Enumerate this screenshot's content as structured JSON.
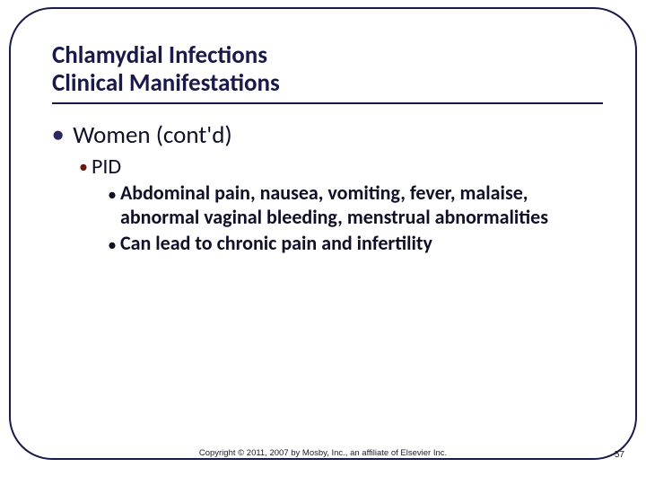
{
  "title": {
    "line1": "Chlamydial Infections",
    "line2": "Clinical Manifestations"
  },
  "bullets": {
    "l1": "Women (cont'd)",
    "l2": "PID",
    "l3a": "Abdominal pain, nausea, vomiting, fever, malaise, abnormal vaginal bleeding, menstrual abnormalities",
    "l3b": "Can lead to chronic pain and infertility"
  },
  "footer": "Copyright © 2011, 2007 by Mosby, Inc., an affiliate of Elsevier Inc.",
  "page": "57",
  "colors": {
    "frame": "#1a1a4a",
    "title": "#1a1a4a",
    "body_text": "#101028",
    "l1_bullet": "#2a2a5a",
    "l2_bullet": "#6e1414",
    "l3_bullet": "#101020",
    "background": "#ffffff"
  }
}
